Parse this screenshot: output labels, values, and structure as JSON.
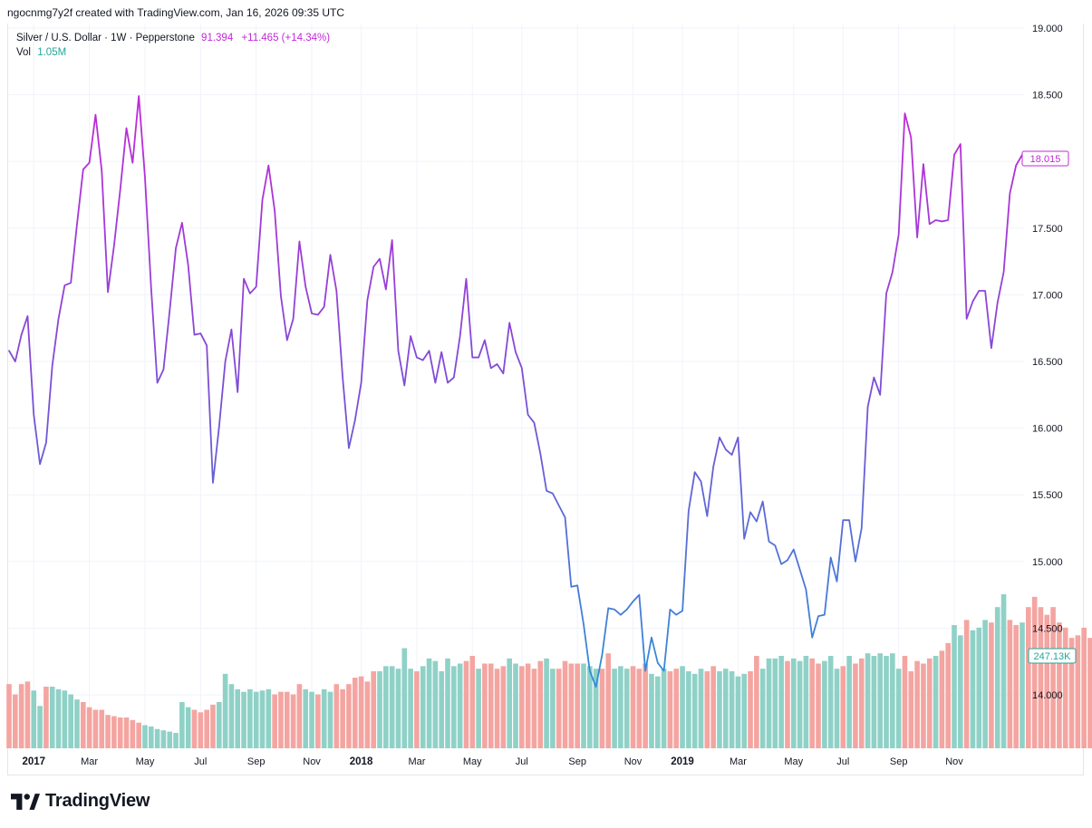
{
  "header": {
    "attribution": "ngocnmg7y2f created with TradingView.com, Jan 16, 2026 09:35 UTC"
  },
  "legend": {
    "symbol": "Silver / U.S. Dollar · 1W · Pepperstone",
    "last_price": "91.394",
    "change": "+11.465 (+14.34%)",
    "vol_label": "Vol",
    "vol_value": "1.05M"
  },
  "price_label": "18.015",
  "volume_label": "247.13K",
  "footer": {
    "brand": "TradingView"
  },
  "colors": {
    "line_top": "#c228d8",
    "line_mid": "#7b4fd6",
    "line_bottom": "#2f8fd8",
    "vol_up": "#8fd1c7",
    "vol_down": "#f4a5a1",
    "grid": "#f0f3fa",
    "price_label_border": "#c228d8",
    "volume_label_border": "#26a69a"
  },
  "chart_data": {
    "type": "line",
    "title": "Silver / U.S. Dollar · 1W · Pepperstone",
    "y_ticks": [
      "14.000",
      "14.500",
      "15.000",
      "15.500",
      "16.000",
      "16.500",
      "17.000",
      "17.500",
      "18.000",
      "18.500",
      "19.000"
    ],
    "ylim": [
      13.6,
      19.0
    ],
    "x_ticks": [
      {
        "label": "2017",
        "bold": true,
        "index": 4
      },
      {
        "label": "Mar",
        "bold": false,
        "index": 13
      },
      {
        "label": "May",
        "bold": false,
        "index": 22
      },
      {
        "label": "Jul",
        "bold": false,
        "index": 31
      },
      {
        "label": "Sep",
        "bold": false,
        "index": 40
      },
      {
        "label": "Nov",
        "bold": false,
        "index": 49
      },
      {
        "label": "2018",
        "bold": true,
        "index": 57
      },
      {
        "label": "Mar",
        "bold": false,
        "index": 66
      },
      {
        "label": "May",
        "bold": false,
        "index": 75
      },
      {
        "label": "Jul",
        "bold": false,
        "index": 83
      },
      {
        "label": "Sep",
        "bold": false,
        "index": 92
      },
      {
        "label": "Nov",
        "bold": false,
        "index": 101
      },
      {
        "label": "2019",
        "bold": true,
        "index": 109
      },
      {
        "label": "Mar",
        "bold": false,
        "index": 118
      },
      {
        "label": "May",
        "bold": false,
        "index": 127
      },
      {
        "label": "Jul",
        "bold": false,
        "index": 135
      },
      {
        "label": "Sep",
        "bold": false,
        "index": 144
      },
      {
        "label": "Nov",
        "bold": false,
        "index": 153
      }
    ],
    "series": [
      {
        "name": "Silver / U.S. Dollar",
        "values": [
          16.58,
          16.5,
          16.7,
          16.84,
          16.1,
          15.73,
          15.89,
          16.47,
          16.82,
          17.07,
          17.09,
          17.53,
          17.94,
          17.99,
          18.35,
          17.93,
          17.02,
          17.37,
          17.79,
          18.25,
          17.99,
          18.49,
          17.88,
          17.05,
          16.34,
          16.44,
          16.88,
          17.35,
          17.54,
          17.22,
          16.7,
          16.71,
          16.62,
          15.59,
          16.01,
          16.5,
          16.74,
          16.27,
          17.12,
          17.01,
          17.06,
          17.71,
          17.97,
          17.63,
          16.99,
          16.66,
          16.82,
          17.4,
          17.06,
          16.86,
          16.85,
          16.91,
          17.3,
          17.03,
          16.38,
          15.85,
          16.06,
          16.34,
          16.96,
          17.21,
          17.27,
          17.04,
          17.41,
          16.58,
          16.32,
          16.69,
          16.53,
          16.51,
          16.58,
          16.34,
          16.57,
          16.34,
          16.38,
          16.69,
          17.12,
          16.53,
          16.53,
          16.66,
          16.45,
          16.48,
          16.41,
          16.79,
          16.57,
          16.45,
          16.1,
          16.04,
          15.81,
          15.53,
          15.51,
          15.42,
          15.33,
          14.81,
          14.82,
          14.53,
          14.18,
          14.06,
          14.3,
          14.65,
          14.64,
          14.6,
          14.64,
          14.7,
          14.75,
          14.18,
          14.43,
          14.24,
          14.18,
          14.64,
          14.6,
          14.63,
          15.38,
          15.67,
          15.6,
          15.34,
          15.71,
          15.93,
          15.84,
          15.8,
          15.93,
          15.17,
          15.37,
          15.3,
          15.45,
          15.15,
          15.12,
          14.98,
          15.01,
          15.09,
          14.94,
          14.79,
          14.43,
          14.59,
          14.6,
          15.03,
          14.85,
          15.31,
          15.31,
          15.0,
          15.25,
          16.16,
          16.38,
          16.25,
          17.01,
          17.17,
          17.45,
          18.36,
          18.18,
          17.43,
          17.98,
          17.53,
          17.56,
          17.55,
          17.56,
          18.05,
          18.13,
          16.82,
          16.95,
          17.03,
          17.03,
          16.6,
          16.94,
          17.17,
          17.76,
          17.97,
          18.05
        ]
      },
      {
        "name": "Vol",
        "up": [
          0,
          0,
          0,
          0,
          1,
          1,
          0,
          1,
          1,
          1,
          1,
          1,
          0,
          0,
          0,
          0,
          0,
          0,
          0,
          0,
          0,
          0,
          1,
          1,
          1,
          1,
          1,
          1,
          1,
          1,
          0,
          0,
          0,
          0,
          1,
          1,
          1,
          1,
          1,
          1,
          1,
          1,
          1,
          0,
          0,
          0,
          0,
          0,
          1,
          1,
          0,
          1,
          1,
          0,
          0,
          0,
          0,
          0,
          0,
          0,
          1,
          1,
          1,
          1,
          1,
          1,
          0,
          1,
          1,
          1,
          1,
          1,
          1,
          1,
          0,
          0,
          1,
          0,
          0,
          0,
          0,
          1,
          1,
          0,
          0,
          0,
          0,
          1,
          1,
          0,
          0,
          0,
          0,
          1,
          1,
          1,
          0,
          0,
          1,
          1,
          1,
          0,
          0,
          0,
          1,
          1,
          1,
          0,
          0,
          1,
          1,
          1,
          1,
          0,
          0,
          1,
          1,
          1,
          1,
          1,
          0,
          0,
          1,
          1,
          1,
          1,
          0,
          1,
          1,
          1,
          0,
          0,
          1,
          1,
          1,
          0,
          1,
          0,
          0,
          1,
          1,
          1,
          1,
          1,
          1,
          0,
          0,
          0,
          0,
          0,
          1,
          0,
          0,
          1,
          1,
          0,
          1,
          1,
          1,
          0,
          1,
          1,
          0,
          0,
          1
        ],
        "values": [
          0.5,
          0.42,
          0.5,
          0.52,
          0.45,
          0.33,
          0.48,
          0.48,
          0.46,
          0.45,
          0.42,
          0.38,
          0.36,
          0.32,
          0.3,
          0.3,
          0.26,
          0.25,
          0.24,
          0.24,
          0.22,
          0.2,
          0.18,
          0.17,
          0.15,
          0.14,
          0.13,
          0.12,
          0.36,
          0.32,
          0.3,
          0.28,
          0.3,
          0.34,
          0.36,
          0.58,
          0.5,
          0.46,
          0.44,
          0.46,
          0.44,
          0.45,
          0.46,
          0.42,
          0.44,
          0.44,
          0.42,
          0.5,
          0.46,
          0.44,
          0.42,
          0.46,
          0.44,
          0.5,
          0.46,
          0.5,
          0.55,
          0.56,
          0.52,
          0.6,
          0.6,
          0.64,
          0.64,
          0.62,
          0.78,
          0.62,
          0.6,
          0.64,
          0.7,
          0.68,
          0.6,
          0.7,
          0.64,
          0.66,
          0.68,
          0.72,
          0.62,
          0.66,
          0.66,
          0.62,
          0.64,
          0.7,
          0.66,
          0.64,
          0.66,
          0.62,
          0.68,
          0.7,
          0.62,
          0.62,
          0.68,
          0.66,
          0.66,
          0.66,
          0.64,
          0.62,
          0.62,
          0.74,
          0.62,
          0.64,
          0.62,
          0.64,
          0.62,
          0.66,
          0.58,
          0.56,
          0.62,
          0.6,
          0.62,
          0.64,
          0.6,
          0.58,
          0.62,
          0.6,
          0.64,
          0.6,
          0.62,
          0.6,
          0.56,
          0.58,
          0.6,
          0.72,
          0.62,
          0.7,
          0.7,
          0.72,
          0.68,
          0.7,
          0.68,
          0.72,
          0.7,
          0.66,
          0.68,
          0.72,
          0.62,
          0.64,
          0.72,
          0.66,
          0.7,
          0.74,
          0.72,
          0.74,
          0.72,
          0.74,
          0.62,
          0.72,
          0.6,
          0.68,
          0.66,
          0.7,
          0.72,
          0.76,
          0.82,
          0.96,
          0.88,
          1.0,
          0.92,
          0.94,
          1.0,
          0.98,
          1.1,
          1.2,
          1.0,
          0.96,
          0.98,
          1.1,
          1.18,
          1.1,
          1.04,
          1.1,
          0.98,
          0.94,
          0.86,
          0.88,
          0.94,
          0.86,
          0.72,
          0.74,
          0.78
        ]
      }
    ]
  }
}
